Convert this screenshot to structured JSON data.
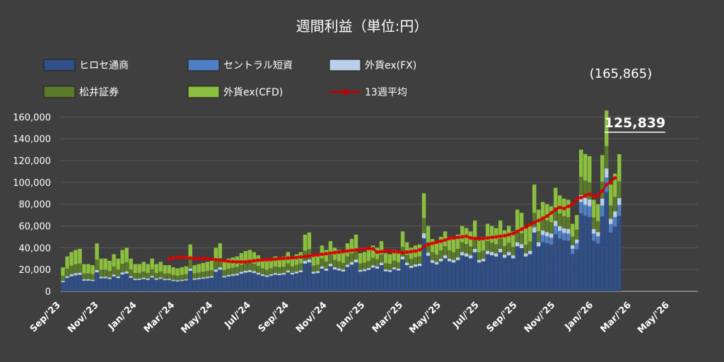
{
  "chart_data": {
    "type": "bar",
    "stacked": true,
    "title": "週間利益（単位:円）",
    "ylim": [
      0,
      170000
    ],
    "yticks": [
      "0",
      "20,000",
      "40,000",
      "60,000",
      "80,000",
      "100,000",
      "120,000",
      "140,000",
      "160,000"
    ],
    "x_tick_labels": [
      "Sep/'23",
      "Nov/'23",
      "Jan/'24",
      "Mar/'24",
      "May/'24",
      "Jul/'24",
      "Sep/'24",
      "Nov/'24",
      "Jan/'25",
      "Mar/'25",
      "May/'25",
      "Jul/'25",
      "Sep/'25",
      "Nov/'25",
      "Jan/'26",
      "Mar/'26",
      "May/'26"
    ],
    "legend": [
      {
        "label": "ヒロセ通商",
        "color": "#2f4f86"
      },
      {
        "label": "セントラル短資",
        "color": "#4f7fc4"
      },
      {
        "label": "外貨ex(FX)",
        "color": "#b9cfea"
      },
      {
        "label": "松井証券",
        "color": "#5b7a2b"
      },
      {
        "label": "外貨ex(CFD)",
        "color": "#8cbf3f"
      },
      {
        "label": "13週平均",
        "color": "#c00000"
      }
    ],
    "annotations": {
      "peak": "(165,865)",
      "latest": "125,839"
    },
    "series_names": [
      "ヒロセ通商",
      "セントラル短資",
      "外貨ex(FX)",
      "松井証券",
      "外貨ex(CFD)",
      "13週平均"
    ],
    "weekly_totals": [
      22000,
      32000,
      36000,
      38000,
      39000,
      25000,
      25000,
      24000,
      44000,
      30000,
      30000,
      28000,
      34000,
      30000,
      38000,
      40000,
      30000,
      25000,
      25000,
      27000,
      25000,
      30000,
      25000,
      27000,
      24000,
      24000,
      22000,
      21000,
      22000,
      23000,
      43000,
      24000,
      25000,
      26000,
      27000,
      28000,
      40000,
      44000,
      28000,
      30000,
      31000,
      32000,
      35000,
      37000,
      38000,
      36000,
      33000,
      30000,
      28000,
      30000,
      32000,
      31000,
      32000,
      36000,
      32000,
      34000,
      36000,
      52000,
      54000,
      33000,
      34000,
      42000,
      38000,
      46000,
      40000,
      38000,
      36000,
      44000,
      48000,
      52000,
      35000,
      36000,
      38000,
      42000,
      40000,
      46000,
      35000,
      34000,
      38000,
      36000,
      55000,
      45000,
      40000,
      42000,
      43000,
      90000,
      60000,
      48000,
      45000,
      50000,
      55000,
      50000,
      48000,
      52000,
      60000,
      58000,
      55000,
      65000,
      48000,
      50000,
      62000,
      60000,
      58000,
      65000,
      56000,
      60000,
      55000,
      75000,
      72000,
      58000,
      62000,
      98000,
      75000,
      82000,
      80000,
      78000,
      95000,
      88000,
      85000,
      84000,
      62000,
      70000,
      130000,
      126000,
      124000,
      84000,
      80000,
      125000,
      165865,
      98000,
      108000,
      125839
    ],
    "avg_13w": [
      29500,
      30500,
      31000,
      31500,
      31000,
      30500,
      30000,
      30000,
      30000,
      29800,
      29500,
      29000,
      28500,
      28000,
      27500,
      27200,
      27000,
      27000,
      27000,
      27500,
      28000,
      28500,
      28800,
      29000,
      29200,
      29500,
      30000,
      30200,
      30500,
      30800,
      31000,
      31500,
      32000,
      32500,
      33000,
      33500,
      34000,
      34500,
      35000,
      35500,
      36000,
      36500,
      37000,
      37500,
      38000,
      38500,
      39000,
      39200,
      39000,
      36000,
      36500,
      37000,
      37000,
      36500,
      36000,
      35500,
      36000,
      36500,
      37000,
      38000,
      41000,
      43000,
      44000,
      45000,
      46000,
      47000,
      48500,
      49000,
      49500,
      50000,
      50500,
      49000,
      48500,
      48000,
      48500,
      49000,
      49500,
      50000,
      50500,
      51000,
      52000,
      53000,
      55000,
      57000,
      59000,
      61000,
      63000,
      65000,
      67000,
      69000,
      72000,
      75000,
      77000,
      76000,
      78000,
      80000,
      85000,
      86000,
      88000,
      89000,
      87000,
      88000,
      92000,
      98000,
      100000,
      104000
    ],
    "avg_start_index": 25
  }
}
